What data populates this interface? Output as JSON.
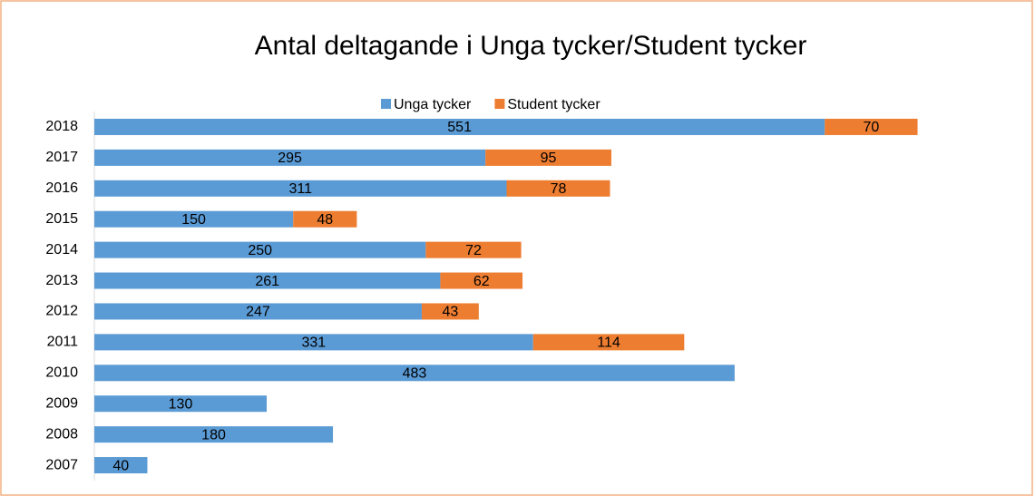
{
  "chart_data": {
    "type": "stacked-bar-horizontal",
    "title": "Antal deltagande i Unga tycker/Student tycker",
    "categories": [
      "2018",
      "2017",
      "2016",
      "2015",
      "2014",
      "2013",
      "2012",
      "2011",
      "2010",
      "2009",
      "2008",
      "2007"
    ],
    "series": [
      {
        "name": "Unga tycker",
        "color": "#5b9bd5",
        "values": [
          551,
          295,
          311,
          150,
          250,
          261,
          247,
          331,
          483,
          130,
          180,
          40
        ]
      },
      {
        "name": "Student tycker",
        "color": "#ed7d31",
        "values": [
          70,
          95,
          78,
          48,
          72,
          62,
          43,
          114,
          null,
          null,
          null,
          null
        ]
      }
    ],
    "xlim": [
      0,
      700
    ],
    "legend": "top"
  }
}
